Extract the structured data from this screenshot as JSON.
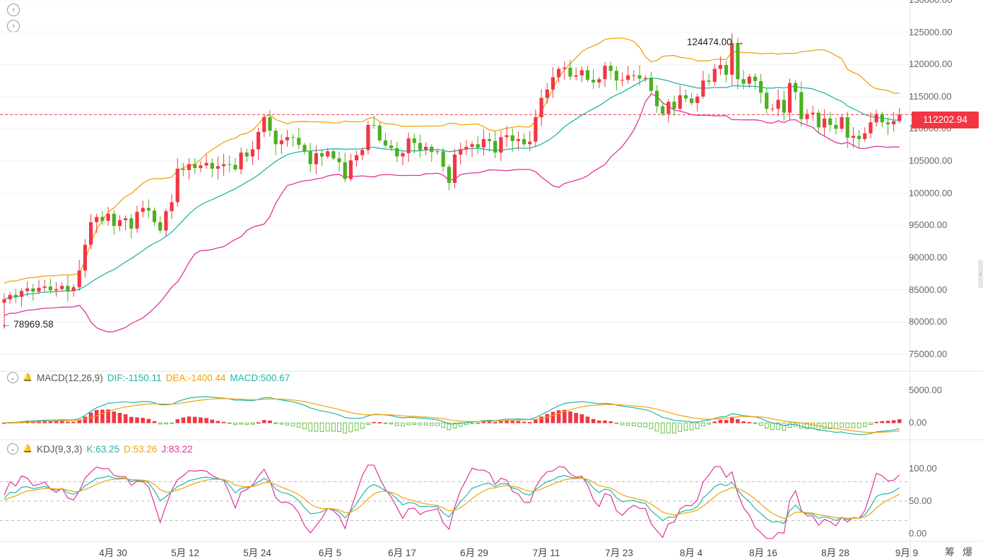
{
  "nav": {
    "up_icon": "chevron-right-circle-icon",
    "down_icon": "chevron-right-circle-icon"
  },
  "price": {
    "current": "112202.94",
    "high_label": "124474.00",
    "high_value": 124474,
    "low_label": "78969.58",
    "low_value": 78969.58,
    "axis_ticks": [
      "130000.00",
      "125000.00",
      "120000.00",
      "115000.00",
      "110000.00",
      "105000.00",
      "100000.00",
      "95000.00",
      "90000.00",
      "85000.00",
      "80000.00",
      "75000.00"
    ],
    "up_color": "#f23645",
    "down_color": "#4caf1f"
  },
  "macd": {
    "title": "MACD(12,26,9)",
    "dif": "DIF:-1150.11",
    "dea": "DEA:-1400.44",
    "macd": "MACD:500.67",
    "axis_ticks": [
      "5000.00",
      "0.00"
    ],
    "dif_color": "#1fb7a6",
    "dea_color": "#f0a30a"
  },
  "kdj": {
    "title": "KDJ(9,3,3)",
    "k": "K:63.25",
    "d": "D:53.26",
    "j": "J:83.22",
    "axis_ticks": [
      "100.00",
      "50.00",
      "0.00"
    ],
    "k_color": "#1fb7a6",
    "d_color": "#f0a30a",
    "j_color": "#e0349b"
  },
  "x_axis": [
    "4月 30",
    "5月 12",
    "5月 24",
    "6月 5",
    "6月 17",
    "6月 29",
    "7月 11",
    "7月 23",
    "8月 4",
    "8月 16",
    "8月 28",
    "9月 9"
  ],
  "corner": {
    "left": "筹",
    "right": "爆"
  },
  "chart_data": {
    "type": "candlestick",
    "candles_start_close": 83500,
    "closes": [
      83500,
      84200,
      83900,
      84800,
      85200,
      84700,
      85300,
      85500,
      84900,
      85100,
      85600,
      84800,
      85400,
      88000,
      92000,
      95500,
      96300,
      95700,
      96800,
      94900,
      95800,
      96100,
      94500,
      97100,
      97700,
      97300,
      95500,
      94200,
      97200,
      98600,
      103800,
      103600,
      104500,
      103900,
      104300,
      104700,
      103800,
      104200,
      104500,
      104400,
      103700,
      106300,
      105700,
      106800,
      109500,
      111800,
      109700,
      107600,
      108200,
      108700,
      108600,
      107500,
      106500,
      104500,
      106200,
      105700,
      106500,
      105400,
      104800,
      102200,
      105100,
      105900,
      106700,
      110600,
      110500,
      108200,
      107400,
      107000,
      105700,
      106200,
      108500,
      107800,
      106700,
      107200,
      106400,
      106500,
      104100,
      101600,
      106000,
      106800,
      107200,
      107600,
      107100,
      108400,
      108100,
      106300,
      108700,
      109000,
      108100,
      108400,
      107600,
      108000,
      111800,
      114800,
      116100,
      118000,
      119300,
      119500,
      118100,
      118300,
      119100,
      117600,
      117200,
      117700,
      119800,
      119000,
      117500,
      117600,
      118300,
      118300,
      117800,
      117900,
      115900,
      113500,
      112300,
      114200,
      113100,
      115200,
      114700,
      114000,
      115000,
      117500,
      117300,
      119300,
      119900,
      118400,
      123300,
      117700,
      117000,
      118100,
      117400,
      115600,
      113100,
      113100,
      114500,
      112500,
      117100,
      115700,
      111500,
      112300,
      112500,
      110200,
      111600,
      110600,
      110000,
      111800,
      108600,
      108900,
      108400,
      109300,
      111000,
      112300,
      111000,
      110700,
      111200,
      112200
    ],
    "boll_upper_start": 89000,
    "series_ranges": {
      "price": [
        73000,
        130000
      ],
      "macd": [
        -2500,
        5800
      ],
      "kdj": [
        -10,
        110
      ]
    },
    "macd_dif_last": -1150.11,
    "macd_dea_last": -1400.44,
    "macd_hist_last": 500.67,
    "k_last": 63.25,
    "d_last": 53.26,
    "j_last": 83.22
  }
}
